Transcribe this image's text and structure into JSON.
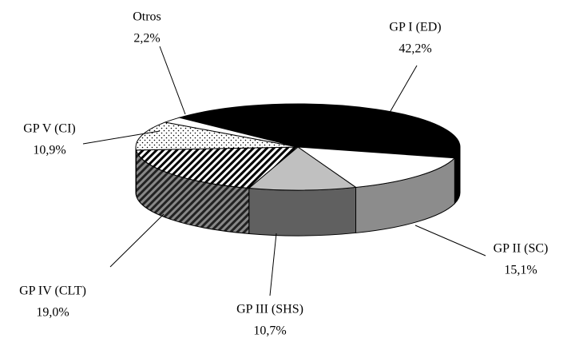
{
  "chart_data": {
    "type": "pie",
    "categories": [
      "GP I (ED)",
      "GP II (SC)",
      "GP III (SHS)",
      "GP IV (CLT)",
      "GP V (CI)",
      "Otros"
    ],
    "values": [
      42.2,
      15.1,
      10.7,
      19.0,
      10.9,
      2.2
    ],
    "value_labels": [
      "42,2%",
      "15,1%",
      "10,7%",
      "19,0%",
      "10,9%",
      "2,2%"
    ]
  }
}
